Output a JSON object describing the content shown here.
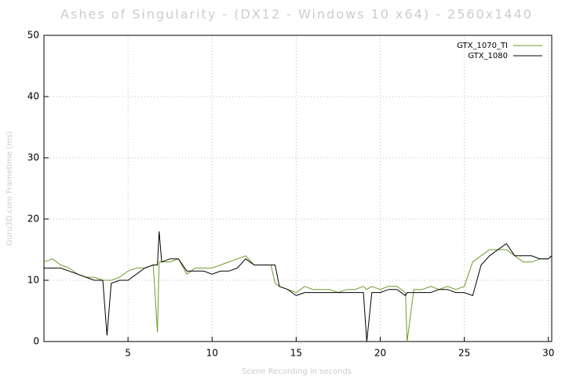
{
  "chart_data": {
    "type": "line",
    "title": "Ashes of Singularity - (DX12 - Windows 10 x64) - 2560x1440",
    "x_label": "Scene Recording in seconds",
    "y_label": "Guru3D.com Frametime (ms)",
    "x": [
      0,
      0.5,
      1,
      1.5,
      2,
      2.5,
      3,
      3.5,
      3.75,
      4,
      4.5,
      5,
      5.5,
      6,
      6.5,
      6.75,
      6.85,
      7,
      7.5,
      8,
      8.5,
      9,
      9.5,
      10,
      10.5,
      11,
      11.5,
      12,
      12.5,
      13,
      13.5,
      13.75,
      14,
      14.5,
      15,
      15.5,
      16,
      16.5,
      17,
      17.5,
      18,
      18.5,
      19,
      19.2,
      19.5,
      20,
      20.5,
      21,
      21.5,
      21.6,
      22,
      22.5,
      23,
      23.5,
      24,
      24.5,
      25,
      25.5,
      26,
      26.5,
      27,
      27.5,
      28,
      28.5,
      29,
      29.5,
      30,
      30.2
    ],
    "series": [
      {
        "name": "GTX_1070_TI",
        "color": "#6f9a2b",
        "values": [
          13,
          13.5,
          12.5,
          12,
          11,
          10.5,
          10.5,
          10,
          10,
          10,
          10.5,
          11.5,
          12,
          12,
          12.5,
          1.5,
          13,
          13,
          13,
          13.5,
          11,
          12,
          12,
          12,
          12.5,
          13,
          13.5,
          14,
          12.5,
          12.5,
          12.5,
          9.5,
          9,
          8.5,
          8,
          9,
          8.5,
          8.5,
          8.5,
          8,
          8.5,
          8.5,
          9,
          8.5,
          9,
          8.5,
          9,
          9,
          8,
          0,
          8.5,
          8.5,
          9,
          8.5,
          9,
          8.5,
          9,
          13,
          14,
          15,
          15,
          15,
          14,
          13,
          13,
          13.5,
          13.5,
          14
        ]
      },
      {
        "name": "GTX_1080",
        "color": "#000000",
        "values": [
          12,
          12,
          12,
          11.5,
          11,
          10.5,
          10,
          10,
          1,
          9.5,
          10,
          10,
          11,
          12,
          12.5,
          12.5,
          18,
          13,
          13.5,
          13.5,
          11.5,
          11.5,
          11.5,
          11,
          11.5,
          11.5,
          12,
          13.5,
          12.5,
          12.5,
          12.5,
          12.5,
          9,
          8.5,
          7.5,
          8,
          8,
          8,
          8,
          8,
          8,
          8,
          8,
          0,
          8,
          8,
          8.5,
          8.5,
          7.5,
          8,
          8,
          8,
          8,
          8.5,
          8.5,
          8,
          8,
          7.5,
          12.5,
          14,
          15,
          16,
          14,
          14,
          14,
          13.5,
          13.5,
          14
        ]
      }
    ],
    "xlim": [
      0,
      30.2
    ],
    "ylim": [
      0,
      50
    ],
    "xticks": [
      5,
      10,
      15,
      20,
      25,
      30
    ],
    "yticks": [
      0,
      10,
      20,
      30,
      40,
      50
    ],
    "grid": true,
    "legend": "upper right"
  }
}
